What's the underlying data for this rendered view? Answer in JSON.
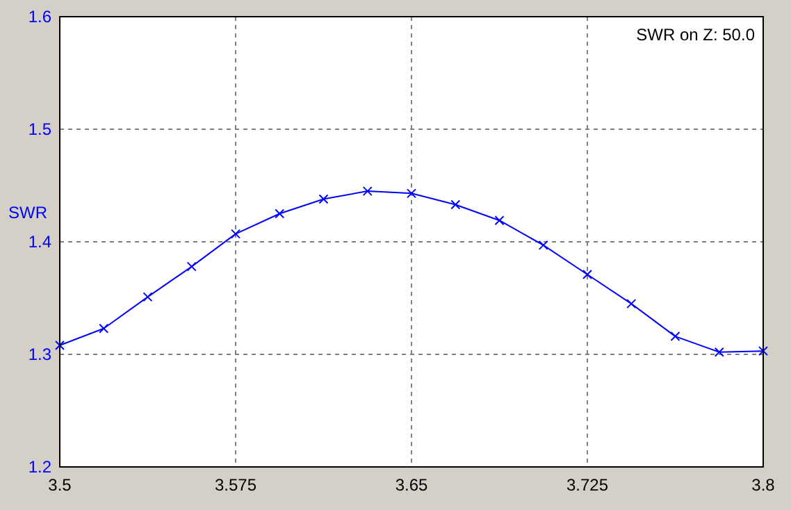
{
  "chart_data": {
    "type": "line",
    "ylabel": "SWR",
    "annotations": [
      "SWR on Z: 50.0"
    ],
    "x": [
      3.5,
      3.51875,
      3.5375,
      3.55625,
      3.575,
      3.59375,
      3.6125,
      3.63125,
      3.65,
      3.66875,
      3.6875,
      3.70625,
      3.725,
      3.74375,
      3.7625,
      3.78125,
      3.8
    ],
    "series": [
      {
        "color": "#0000ff",
        "values": [
          1.308,
          1.323,
          1.351,
          1.378,
          1.407,
          1.425,
          1.438,
          1.445,
          1.443,
          1.433,
          1.419,
          1.397,
          1.371,
          1.345,
          1.316,
          1.302,
          1.303
        ]
      }
    ],
    "xlim": [
      3.5,
      3.8
    ],
    "xticks": [
      3.5,
      3.575,
      3.65,
      3.725,
      3.8
    ],
    "ylim": [
      1.2,
      1.6
    ],
    "yticks": [
      1.2,
      1.3,
      1.4,
      1.5,
      1.6
    ],
    "grid": true,
    "marker": "cross",
    "line_style": "solid"
  }
}
